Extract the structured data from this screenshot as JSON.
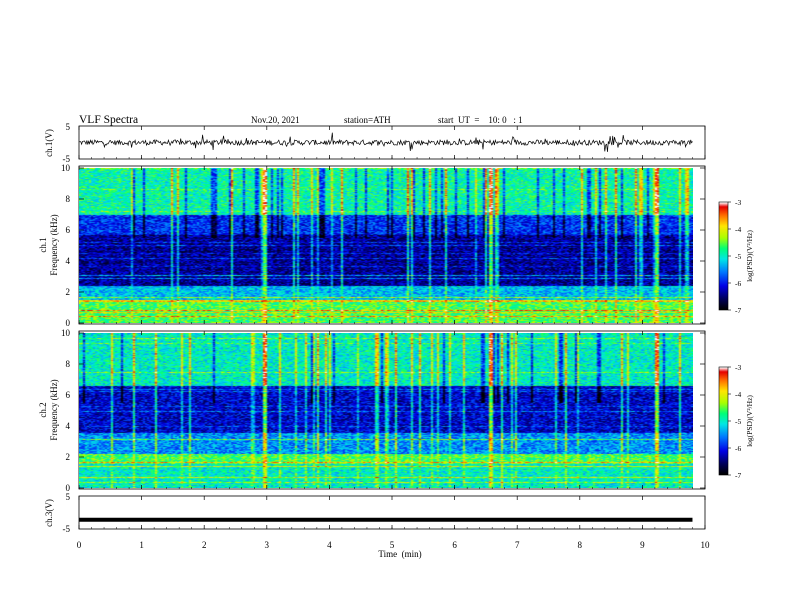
{
  "header": {
    "title": "VLF  Spectra",
    "date": "Nov.20, 2021",
    "station": "station=ATH",
    "start_ut": "start  UT  =    10: 0   : 1"
  },
  "colors": {
    "waveform": "#000000",
    "colormap": [
      "#000000",
      "#000080",
      "#0000ff",
      "#00a0ff",
      "#00ffff",
      "#00ff80",
      "#c0ff00",
      "#ffff00",
      "#ff8000",
      "#ff0000",
      "#ffffff"
    ]
  },
  "chart_data": [
    {
      "type": "line",
      "panel": "ch1-waveform",
      "ylabel": "ch.1(V)",
      "ylim": [
        -5,
        5
      ],
      "y_ticks": [
        "5",
        "-5"
      ],
      "x_range_min": [
        0,
        9.8
      ],
      "description_values": {
        "mean": 0,
        "spread": 0.8,
        "spike_amplitude": 2.5
      }
    },
    {
      "type": "heatmap",
      "panel": "ch1-spectrogram",
      "ylabel_channel": "ch.1",
      "ylabel": "Frequency  (kHz)",
      "ylim": [
        0,
        10
      ],
      "y_ticks": [
        "0",
        "2",
        "4",
        "6",
        "8",
        "10"
      ],
      "colorbar": {
        "label": "log(PSD)(V²/Hz)",
        "range": [
          -7,
          -3
        ],
        "ticks": [
          "-3",
          "-4",
          "-5",
          "-6",
          "-7"
        ]
      },
      "bands_khz": [
        {
          "from": 0,
          "to": 1.5,
          "level": -4.6
        },
        {
          "from": 1.5,
          "to": 2.4,
          "level": -5.3
        },
        {
          "from": 2.4,
          "to": 5.8,
          "level": -6.4
        },
        {
          "from": 5.8,
          "to": 7.0,
          "level": -5.9
        },
        {
          "from": 7.0,
          "to": 10,
          "level": -4.9
        }
      ],
      "strong_events_min": [
        2.95,
        6.55,
        9.2
      ]
    },
    {
      "type": "heatmap",
      "panel": "ch2-spectrogram",
      "ylabel_channel": "ch.2",
      "ylabel": "Frequency  (kHz)",
      "ylim": [
        0,
        10
      ],
      "y_ticks": [
        "0",
        "2",
        "4",
        "6",
        "8",
        "10"
      ],
      "colorbar": {
        "label": "log(PSD)(V²/Hz)",
        "range": [
          -7,
          -3
        ],
        "ticks": [
          "-3",
          "-4",
          "-5",
          "-6",
          "-7"
        ]
      },
      "bands_khz": [
        {
          "from": 0,
          "to": 1.6,
          "level": -5.0
        },
        {
          "from": 1.6,
          "to": 2.2,
          "level": -4.6
        },
        {
          "from": 2.2,
          "to": 3.6,
          "level": -5.5
        },
        {
          "from": 3.6,
          "to": 6.6,
          "level": -6.2
        },
        {
          "from": 6.6,
          "to": 10,
          "level": -5.0
        }
      ],
      "strong_events_min": [
        2.95,
        6.55,
        9.2
      ]
    },
    {
      "type": "line",
      "panel": "ch3-waveform",
      "ylabel": "ch.3(V)",
      "ylim": [
        -5,
        5
      ],
      "y_ticks": [
        "5",
        "-5"
      ],
      "constant_value": -2.2,
      "x_range_min": [
        0,
        9.8
      ]
    }
  ],
  "x_axis": {
    "label": "Time  (min)",
    "range": [
      0,
      10
    ],
    "ticks": [
      "0",
      "1",
      "2",
      "3",
      "4",
      "5",
      "6",
      "7",
      "8",
      "9",
      "10"
    ]
  }
}
